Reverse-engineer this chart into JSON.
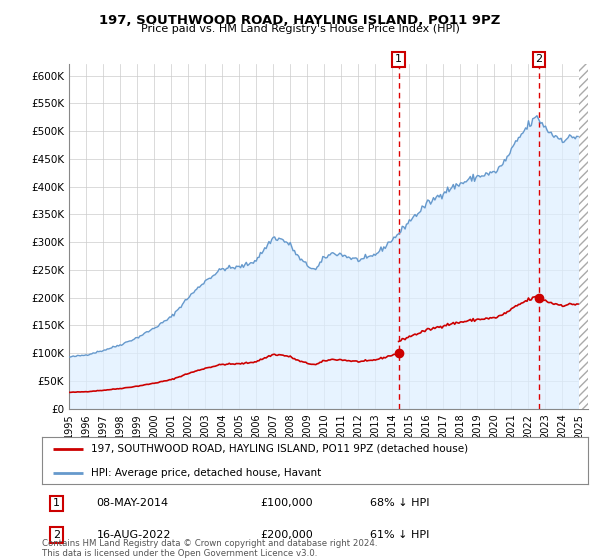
{
  "title": "197, SOUTHWOOD ROAD, HAYLING ISLAND, PO11 9PZ",
  "subtitle": "Price paid vs. HM Land Registry's House Price Index (HPI)",
  "legend_property": "197, SOUTHWOOD ROAD, HAYLING ISLAND, PO11 9PZ (detached house)",
  "legend_hpi": "HPI: Average price, detached house, Havant",
  "footnote": "Contains HM Land Registry data © Crown copyright and database right 2024.\nThis data is licensed under the Open Government Licence v3.0.",
  "sale1_date": "08-MAY-2014",
  "sale1_price": "£100,000",
  "sale1_hpi": "68% ↓ HPI",
  "sale2_date": "16-AUG-2022",
  "sale2_price": "£200,000",
  "sale2_hpi": "61% ↓ HPI",
  "property_color": "#cc0000",
  "hpi_color": "#6699cc",
  "hpi_fill_color": "#ddeeff",
  "ylim": [
    0,
    620000
  ],
  "yticks": [
    0,
    50000,
    100000,
    150000,
    200000,
    250000,
    300000,
    350000,
    400000,
    450000,
    500000,
    550000,
    600000
  ],
  "ytick_labels": [
    "£0",
    "£50K",
    "£100K",
    "£150K",
    "£200K",
    "£250K",
    "£300K",
    "£350K",
    "£400K",
    "£450K",
    "£500K",
    "£550K",
    "£600K"
  ],
  "sale1_x": 2014.37,
  "sale1_y": 100000,
  "sale2_x": 2022.62,
  "sale2_y": 200000,
  "xmin": 1995,
  "xmax": 2025.5,
  "background_color": "#ffffff",
  "grid_color": "#cccccc"
}
